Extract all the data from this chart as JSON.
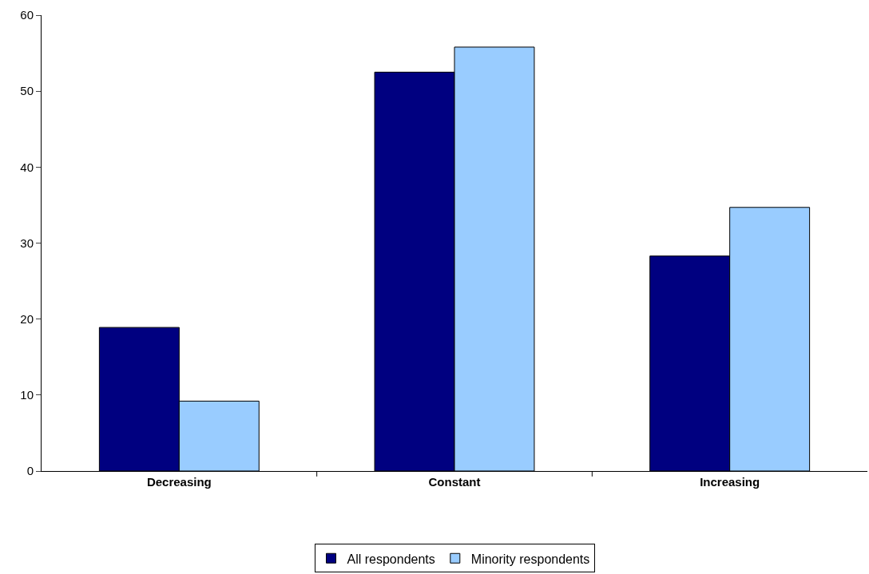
{
  "chart_data": {
    "type": "bar",
    "categories": [
      "Decreasing",
      "Constant",
      "Increasing"
    ],
    "series": [
      {
        "name": "All respondents",
        "color": "#000080",
        "values": [
          18.9,
          52.5,
          28.3
        ]
      },
      {
        "name": "Minority respondents",
        "color": "#99ccff",
        "values": [
          9.2,
          55.8,
          34.7
        ]
      }
    ],
    "ylim": [
      0,
      60
    ],
    "yticks": [
      0,
      10,
      20,
      30,
      40,
      50,
      60
    ],
    "legend": "bottom"
  }
}
